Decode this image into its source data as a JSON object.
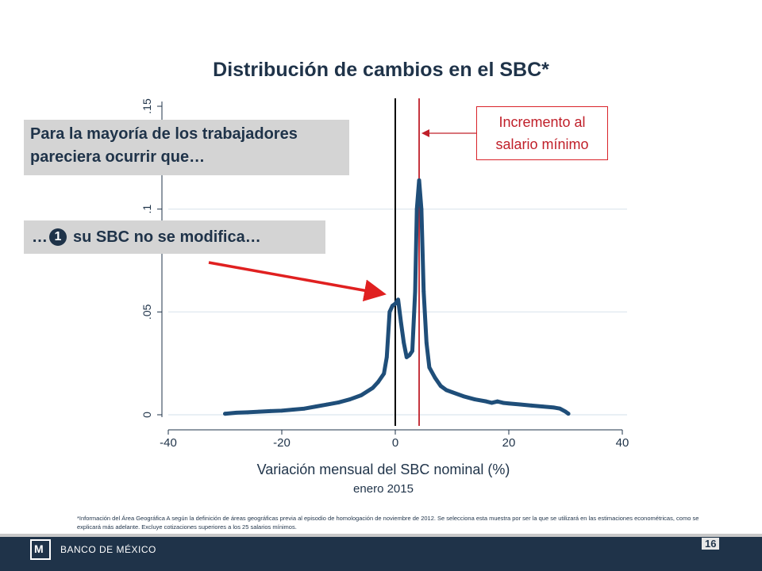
{
  "title": "Distribución de cambios en el SBC*",
  "callouts": {
    "main": "Para la mayoría de los trabajadores pareciera ocurrir que…",
    "prefix": "…",
    "number": "1",
    "point": "su SBC no se modifica…",
    "minimum_wage": "Incremento al salario mínimo"
  },
  "footnote": "*Información del Área Geográfica A según la definición de áreas geográficas previa al episodio de homologación de noviembre de 2012. Se selecciona esta muestra por ser la que se utilizará en las estimaciones econométricas, como se explicará más adelante. Excluye cotizaciones superiores a los 25 salarios mínimos.",
  "footer": {
    "bank_name": "BANCO DE MÉXICO",
    "page_number": "16"
  },
  "colors": {
    "title": "#1f3349",
    "series": "#1f4e79",
    "minimum_wage_line": "#c0202a",
    "arrow": "#e02020",
    "footer": "#1f3349",
    "callout_bg": "#d4d4d4"
  },
  "chart_data": {
    "type": "line",
    "title": "",
    "xlabel": "Variación mensual del SBC nominal (%)",
    "xsublabel": "enero 2015",
    "ylabel": "",
    "xlim": [
      -40,
      40
    ],
    "ylim": [
      0,
      0.15
    ],
    "xticks": [
      -40,
      -20,
      0,
      20,
      40
    ],
    "xtick_labels": [
      "-40",
      "-20",
      "0",
      "20",
      "40"
    ],
    "yticks": [
      0,
      0.05,
      0.1,
      0.15
    ],
    "ytick_labels": [
      "0",
      ".05",
      ".1",
      ".15"
    ],
    "grid": true,
    "reference_lines": [
      {
        "x": 0,
        "color": "#000000"
      },
      {
        "x": 4.2,
        "color": "#c0202a"
      }
    ],
    "series": [
      {
        "x": [
          -30,
          -28,
          -26,
          -24,
          -22,
          -20,
          -18,
          -16,
          -14,
          -12,
          -10,
          -8,
          -6,
          -4,
          -3,
          -2,
          -1.5,
          -1,
          -0.5,
          0,
          0.5,
          1,
          1.5,
          2,
          2.5,
          3,
          3.5,
          3.8,
          4.2,
          4.6,
          5,
          5.5,
          6,
          7,
          8,
          9,
          10,
          12,
          14,
          16,
          17,
          18,
          19,
          20,
          22,
          24,
          26,
          28,
          29,
          30,
          30.5
        ],
        "y": [
          0.0005,
          0.001,
          0.0012,
          0.0015,
          0.0018,
          0.002,
          0.0025,
          0.003,
          0.004,
          0.005,
          0.006,
          0.0075,
          0.0095,
          0.013,
          0.016,
          0.02,
          0.028,
          0.05,
          0.053,
          0.054,
          0.056,
          0.045,
          0.035,
          0.028,
          0.029,
          0.031,
          0.06,
          0.1,
          0.114,
          0.1,
          0.06,
          0.035,
          0.023,
          0.018,
          0.014,
          0.012,
          0.011,
          0.009,
          0.0075,
          0.0065,
          0.0058,
          0.0065,
          0.0058,
          0.0055,
          0.005,
          0.0045,
          0.004,
          0.0035,
          0.003,
          0.0015,
          0.0005
        ]
      }
    ]
  }
}
